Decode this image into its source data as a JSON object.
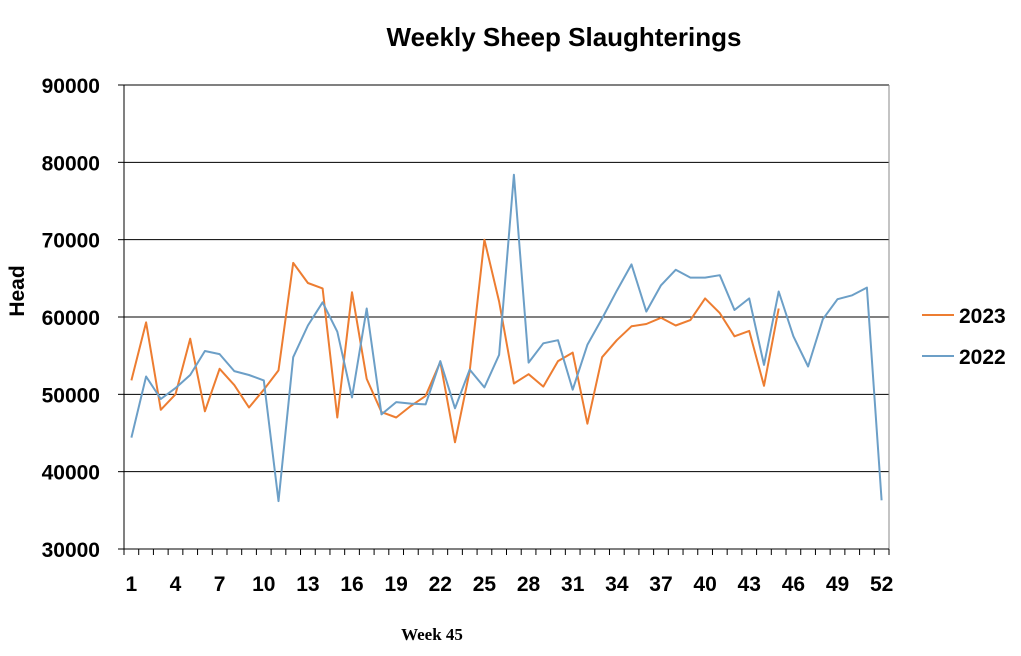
{
  "chart_data": {
    "type": "line",
    "title": "Weekly Sheep Slaughterings",
    "ylabel": "Head",
    "xlabel": "",
    "ylim": [
      30000,
      90000
    ],
    "yticks": [
      30000,
      40000,
      50000,
      60000,
      70000,
      80000,
      90000
    ],
    "xlim": [
      1,
      52
    ],
    "xticks": [
      1,
      4,
      7,
      10,
      13,
      16,
      19,
      22,
      25,
      28,
      31,
      34,
      37,
      40,
      43,
      46,
      49,
      52
    ],
    "grid": "horizontal",
    "legend_position": "right",
    "series": [
      {
        "name": "2023",
        "color": "#ED7D31",
        "x": [
          1,
          2,
          3,
          4,
          5,
          6,
          7,
          8,
          9,
          10,
          11,
          12,
          13,
          14,
          15,
          16,
          17,
          18,
          19,
          20,
          21,
          22,
          23,
          24,
          25,
          26,
          27,
          28,
          29,
          30,
          31,
          32,
          33,
          34,
          35,
          36,
          37,
          38,
          39,
          40,
          41,
          42,
          43,
          44,
          45
        ],
        "values": [
          51800,
          59300,
          48000,
          50000,
          57200,
          47800,
          53300,
          51200,
          48300,
          50600,
          53100,
          67000,
          64400,
          63700,
          47000,
          63200,
          52000,
          47700,
          47000,
          48500,
          49800,
          54200,
          43800,
          53000,
          70000,
          62000,
          51400,
          52600,
          51000,
          54300,
          55400,
          46200,
          54800,
          57000,
          58800,
          59100,
          59900,
          58900,
          59600,
          62400,
          60500,
          57500,
          58200,
          51100,
          61100
        ]
      },
      {
        "name": "2022",
        "color": "#6C9FC7",
        "x": [
          1,
          2,
          3,
          4,
          5,
          6,
          7,
          8,
          9,
          10,
          11,
          12,
          13,
          14,
          15,
          16,
          17,
          18,
          19,
          20,
          21,
          22,
          23,
          24,
          25,
          26,
          27,
          28,
          29,
          30,
          31,
          32,
          33,
          34,
          35,
          36,
          37,
          38,
          39,
          40,
          41,
          42,
          43,
          44,
          45,
          46,
          47,
          48,
          49,
          50,
          51,
          52
        ],
        "values": [
          44400,
          52300,
          49400,
          50800,
          52500,
          55600,
          55200,
          53000,
          52500,
          51800,
          36200,
          54800,
          58900,
          61900,
          58100,
          49600,
          61100,
          47400,
          49000,
          48800,
          48700,
          54300,
          48200,
          53200,
          50900,
          55100,
          78400,
          54100,
          56600,
          57000,
          50600,
          56400,
          59800,
          63400,
          66800,
          60700,
          64100,
          66100,
          65100,
          65100,
          65400,
          60900,
          62400,
          53800,
          63300,
          57500,
          53600,
          59700,
          62300,
          62800,
          63800,
          36300
        ]
      }
    ]
  },
  "footer": {
    "label": "Week 45"
  }
}
